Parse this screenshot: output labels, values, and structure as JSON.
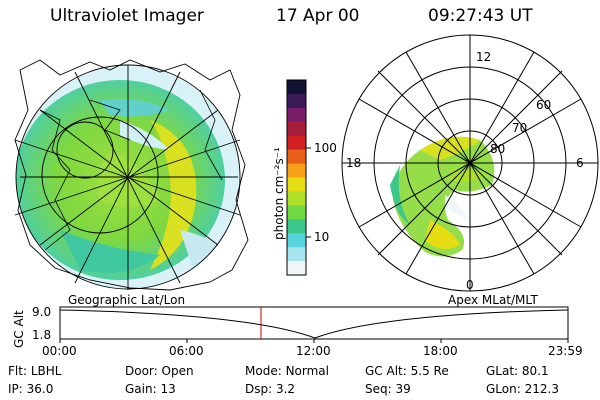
{
  "header": {
    "title": "Ultraviolet Imager",
    "date": "17 Apr 00",
    "time": "09:27:43 UT"
  },
  "colorbar": {
    "unit_label": "photon cm⁻²s⁻¹",
    "tick_labels": [
      "100",
      "10"
    ],
    "colors": [
      "#111133",
      "#3a1a55",
      "#7a1d6a",
      "#a81c3c",
      "#d02020",
      "#e8601a",
      "#f7a01a",
      "#e6dc14",
      "#aee02a",
      "#72d842",
      "#3cc88a",
      "#56d4dc",
      "#a6e4ee",
      "#eef6f8"
    ]
  },
  "left_panel": {
    "label": "Geographic Lat/Lon"
  },
  "right_panel": {
    "label": "Apex MLat/MLT",
    "mlt_labels": {
      "top": "12",
      "left": "18",
      "right": "6",
      "bottom": "0"
    },
    "lat_labels": [
      "60",
      "70",
      "80"
    ]
  },
  "altitude_plot": {
    "ylabel": "GC Alt",
    "y_ticks": [
      "9.0",
      "1.8"
    ],
    "x_ticks": [
      "00:00",
      "06:00",
      "12:00",
      "18:00",
      "23:59"
    ],
    "marker_color": "#cc0000"
  },
  "status": {
    "row1": [
      {
        "label": "Flt:",
        "value": "LBHL"
      },
      {
        "label": "Door:",
        "value": "Open"
      },
      {
        "label": "Mode:",
        "value": "Normal"
      },
      {
        "label": "GC Alt:",
        "value": "5.5 Re"
      },
      {
        "label": "GLat:",
        "value": "80.1"
      }
    ],
    "row2": [
      {
        "label": "IP:",
        "value": "36.0"
      },
      {
        "label": "Gain:",
        "value": "13"
      },
      {
        "label": "Dsp:",
        "value": "3.2"
      },
      {
        "label": "Seq:",
        "value": "39"
      },
      {
        "label": "GLon:",
        "value": "212.3"
      }
    ]
  }
}
